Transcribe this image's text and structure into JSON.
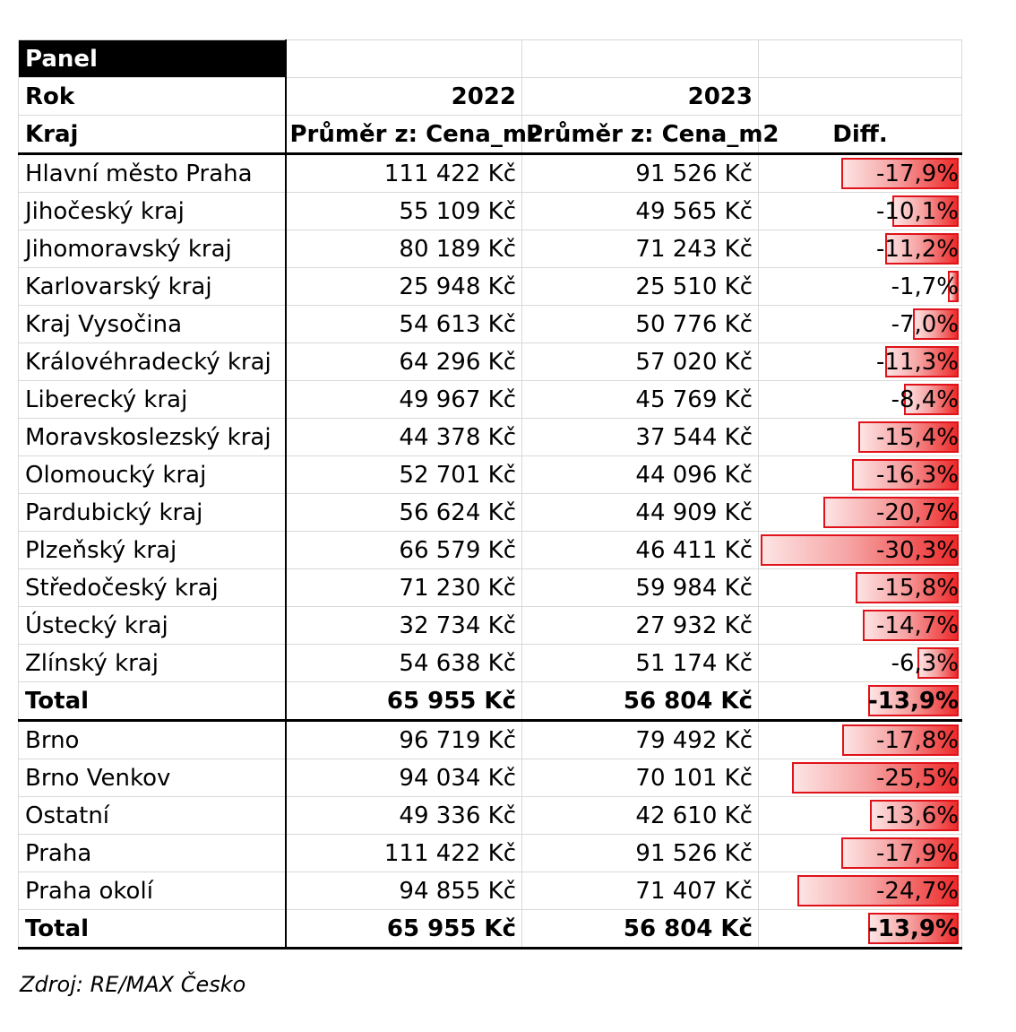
{
  "header": {
    "panel_label": "Panel",
    "rok_label": "Rok",
    "year_2022": "2022",
    "year_2023": "2023",
    "kraj_label": "Kraj",
    "col_2022_label": "Průměr z: Cena_m2",
    "col_2023_label": "Průměr z: Cena_m2",
    "diff_label": "Diff."
  },
  "regions": [
    {
      "name": "Hlavní město Praha",
      "v2022": "111 422 Kč",
      "v2023": "91 526 Kč",
      "diff": "-17,9%",
      "diff_value": -17.9
    },
    {
      "name": "Jihočeský kraj",
      "v2022": "55 109 Kč",
      "v2023": "49 565 Kč",
      "diff": "-10,1%",
      "diff_value": -10.1
    },
    {
      "name": "Jihomoravský kraj",
      "v2022": "80 189 Kč",
      "v2023": "71 243 Kč",
      "diff": "-11,2%",
      "diff_value": -11.2
    },
    {
      "name": "Karlovarský kraj",
      "v2022": "25 948 Kč",
      "v2023": "25 510 Kč",
      "diff": "-1,7%",
      "diff_value": -1.7
    },
    {
      "name": "Kraj Vysočina",
      "v2022": "54 613 Kč",
      "v2023": "50 776 Kč",
      "diff": "-7,0%",
      "diff_value": -7.0
    },
    {
      "name": "Královéhradecký kraj",
      "v2022": "64 296 Kč",
      "v2023": "57 020 Kč",
      "diff": "-11,3%",
      "diff_value": -11.3
    },
    {
      "name": "Liberecký kraj",
      "v2022": "49 967 Kč",
      "v2023": "45 769 Kč",
      "diff": "-8,4%",
      "diff_value": -8.4
    },
    {
      "name": "Moravskoslezský kraj",
      "v2022": "44 378 Kč",
      "v2023": "37 544 Kč",
      "diff": "-15,4%",
      "diff_value": -15.4
    },
    {
      "name": "Olomoucký kraj",
      "v2022": "52 701 Kč",
      "v2023": "44 096 Kč",
      "diff": "-16,3%",
      "diff_value": -16.3
    },
    {
      "name": "Pardubický kraj",
      "v2022": "56 624 Kč",
      "v2023": "44 909 Kč",
      "diff": "-20,7%",
      "diff_value": -20.7
    },
    {
      "name": "Plzeňský kraj",
      "v2022": "66 579 Kč",
      "v2023": "46 411 Kč",
      "diff": "-30,3%",
      "diff_value": -30.3
    },
    {
      "name": "Středočeský kraj",
      "v2022": "71 230 Kč",
      "v2023": "59 984 Kč",
      "diff": "-15,8%",
      "diff_value": -15.8
    },
    {
      "name": "Ústecký kraj",
      "v2022": "32 734 Kč",
      "v2023": "27 932 Kč",
      "diff": "-14,7%",
      "diff_value": -14.7
    },
    {
      "name": "Zlínský kraj",
      "v2022": "54 638 Kč",
      "v2023": "51 174 Kč",
      "diff": "-6,3%",
      "diff_value": -6.3
    }
  ],
  "regions_total": {
    "name": "Total",
    "v2022": "65 955 Kč",
    "v2023": "56 804 Kč",
    "diff": "-13,9%",
    "diff_value": -13.9
  },
  "cities": [
    {
      "name": "Brno",
      "v2022": "96 719 Kč",
      "v2023": "79 492 Kč",
      "diff": "-17,8%",
      "diff_value": -17.8
    },
    {
      "name": "Brno Venkov",
      "v2022": "94 034 Kč",
      "v2023": "70 101 Kč",
      "diff": "-25,5%",
      "diff_value": -25.5
    },
    {
      "name": "Ostatní",
      "v2022": "49 336 Kč",
      "v2023": "42 610 Kč",
      "diff": "-13,6%",
      "diff_value": -13.6
    },
    {
      "name": "Praha",
      "v2022": "111 422 Kč",
      "v2023": "91 526 Kč",
      "diff": "-17,9%",
      "diff_value": -17.9
    },
    {
      "name": "Praha okolí",
      "v2022": "94 855 Kč",
      "v2023": "71 407 Kč",
      "diff": "-24,7%",
      "diff_value": -24.7
    }
  ],
  "cities_total": {
    "name": "Total",
    "v2022": "65 955 Kč",
    "v2023": "56 804 Kč",
    "diff": "-13,9%",
    "diff_value": -13.9
  },
  "source": "Zdroj: RE/MAX Česko",
  "colors": {
    "bar_border": "#e0121a",
    "bar_fill_start": "#fde4e4",
    "bar_fill_end": "#ed2a2a",
    "header_bg": "#000000"
  }
}
